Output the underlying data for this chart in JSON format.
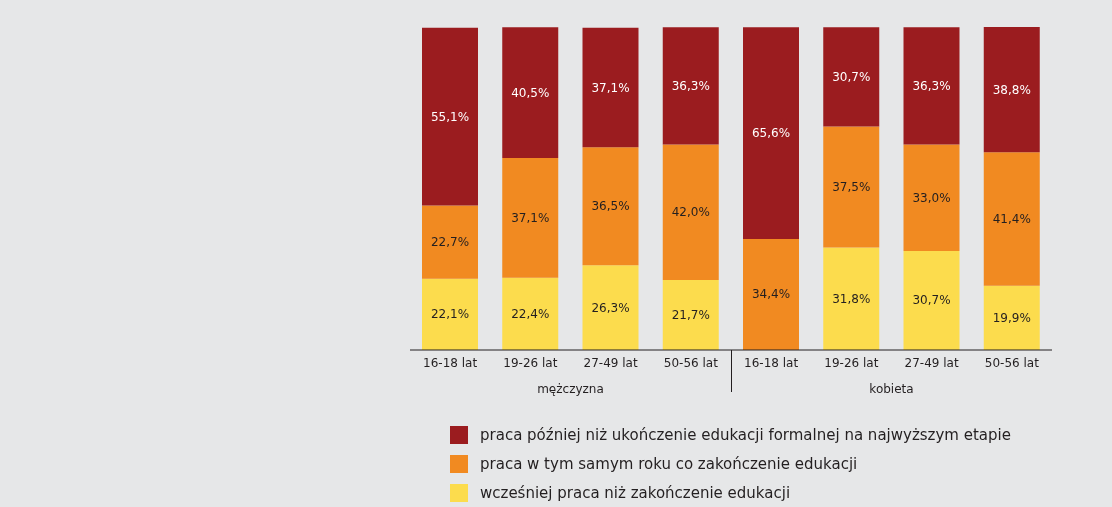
{
  "chart_data": {
    "type": "bar",
    "stacked": true,
    "data_labels": true,
    "legend": "bottom",
    "categories": [
      "16-18 lat",
      "19-26 lat",
      "27-49 lat",
      "50-56 lat",
      "16-18 lat",
      "19-26 lat",
      "27-49 lat",
      "50-56 lat"
    ],
    "annotations": [
      "mężczyzna",
      "kobieta"
    ],
    "series": [
      {
        "name": "wcześniej praca niż zakończenie edukacji",
        "color": "#fcdc4d",
        "values": [
          22.1,
          22.4,
          26.3,
          21.7,
          null,
          31.8,
          30.7,
          19.9
        ],
        "value_labels": [
          "22,1%",
          "22,4%",
          "26,3%",
          "21,7%",
          null,
          "31,8%",
          "30,7%",
          "19,9%"
        ]
      },
      {
        "name": "praca w tym samym roku co zakończenie edukacji",
        "color": "#f18a21",
        "values": [
          22.7,
          37.1,
          36.5,
          42.0,
          34.4,
          37.5,
          33.0,
          41.4
        ],
        "value_labels": [
          "22,7%",
          "37,1%",
          "36,5%",
          "42,0%",
          "34,4%",
          "37,5%",
          "33,0%",
          "41,4%"
        ]
      },
      {
        "name": "praca później niż ukończenie edukacji formalnej na najwyższym etapie",
        "color": "#9b1c1f",
        "values": [
          55.1,
          40.5,
          37.1,
          36.3,
          65.6,
          30.7,
          36.3,
          38.8
        ],
        "value_labels": [
          "55,1%",
          "40,5%",
          "37,1%",
          "36,3%",
          "65,6%",
          "30,7%",
          "36,3%",
          "38,8%"
        ]
      }
    ]
  }
}
